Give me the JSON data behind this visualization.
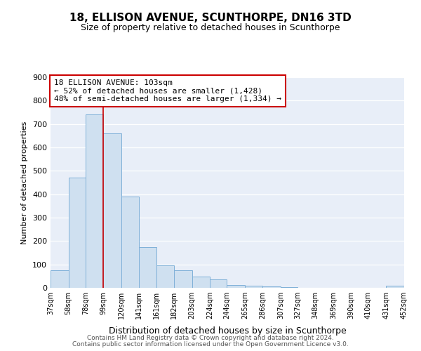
{
  "title": "18, ELLISON AVENUE, SCUNTHORPE, DN16 3TD",
  "subtitle": "Size of property relative to detached houses in Scunthorpe",
  "xlabel": "Distribution of detached houses by size in Scunthorpe",
  "ylabel": "Number of detached properties",
  "bar_color": "#cfe0f0",
  "bar_edge_color": "#7fb0d8",
  "plot_bg_color": "#e8eef8",
  "fig_bg_color": "#ffffff",
  "grid_color": "#ffffff",
  "annotation_box_color": "#cc0000",
  "vline_color": "#cc0000",
  "vline_x": 99,
  "annotation_line1": "18 ELLISON AVENUE: 103sqm",
  "annotation_line2": "← 52% of detached houses are smaller (1,428)",
  "annotation_line3": "48% of semi-detached houses are larger (1,334) →",
  "footer1": "Contains HM Land Registry data © Crown copyright and database right 2024.",
  "footer2": "Contains public sector information licensed under the Open Government Licence v3.0.",
  "bin_edges": [
    37,
    58,
    78,
    99,
    120,
    141,
    161,
    182,
    203,
    224,
    244,
    265,
    286,
    307,
    327,
    348,
    369,
    390,
    410,
    431,
    452
  ],
  "bin_labels": [
    "37sqm",
    "58sqm",
    "78sqm",
    "99sqm",
    "120sqm",
    "141sqm",
    "161sqm",
    "182sqm",
    "203sqm",
    "224sqm",
    "244sqm",
    "265sqm",
    "286sqm",
    "307sqm",
    "327sqm",
    "348sqm",
    "369sqm",
    "390sqm",
    "410sqm",
    "431sqm",
    "452sqm"
  ],
  "counts": [
    75,
    472,
    740,
    660,
    390,
    175,
    97,
    75,
    47,
    35,
    12,
    10,
    5,
    3,
    0,
    0,
    0,
    0,
    0,
    8
  ],
  "ylim": [
    0,
    900
  ],
  "yticks": [
    0,
    100,
    200,
    300,
    400,
    500,
    600,
    700,
    800,
    900
  ]
}
